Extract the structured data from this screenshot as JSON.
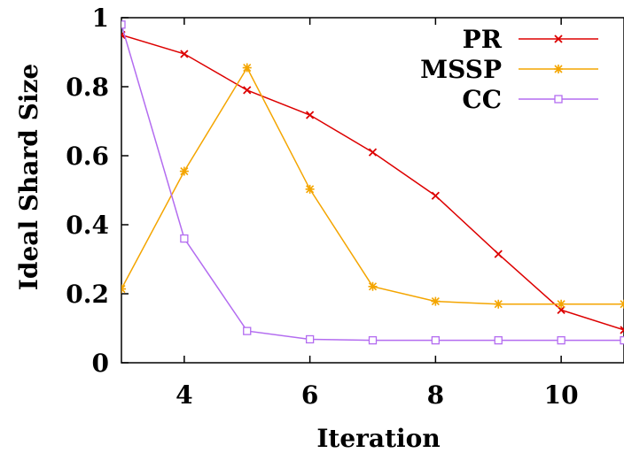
{
  "chart_data": {
    "type": "line",
    "xlabel": "Iteration",
    "ylabel": "Ideal Shard Size",
    "xlim": [
      3,
      11
    ],
    "ylim": [
      0,
      1
    ],
    "x_ticks": [
      4,
      6,
      8,
      10
    ],
    "y_ticks": [
      {
        "value": 0,
        "label": "0"
      },
      {
        "value": 0.2,
        "label": "0.2"
      },
      {
        "value": 0.4,
        "label": "0.4"
      },
      {
        "value": 0.6,
        "label": "0.6"
      },
      {
        "value": 0.8,
        "label": "0.8"
      },
      {
        "value": 1,
        "label": "1"
      }
    ],
    "grid": false,
    "legend_position": "top-right",
    "series": [
      {
        "name": "PR",
        "color": "#dd0000",
        "marker": "x",
        "points": [
          [
            3,
            0.95
          ],
          [
            4,
            0.895
          ],
          [
            5,
            0.79
          ],
          [
            6,
            0.718
          ],
          [
            7,
            0.61
          ],
          [
            8,
            0.484
          ],
          [
            9,
            0.315
          ],
          [
            10,
            0.153
          ],
          [
            11,
            0.095
          ]
        ]
      },
      {
        "name": "MSSP",
        "color": "#f4a500",
        "marker": "star",
        "points": [
          [
            3,
            0.214
          ],
          [
            4,
            0.555
          ],
          [
            5,
            0.855
          ],
          [
            6,
            0.503
          ],
          [
            7,
            0.221
          ],
          [
            8,
            0.178
          ],
          [
            9,
            0.17
          ],
          [
            10,
            0.17
          ],
          [
            11,
            0.17
          ]
        ]
      },
      {
        "name": "CC",
        "color": "#b36cf0",
        "marker": "open-square",
        "points": [
          [
            3,
            0.98
          ],
          [
            4,
            0.36
          ],
          [
            5,
            0.092
          ],
          [
            6,
            0.068
          ],
          [
            7,
            0.065
          ],
          [
            8,
            0.065
          ],
          [
            9,
            0.065
          ],
          [
            10,
            0.065
          ],
          [
            11,
            0.065
          ]
        ]
      }
    ]
  }
}
